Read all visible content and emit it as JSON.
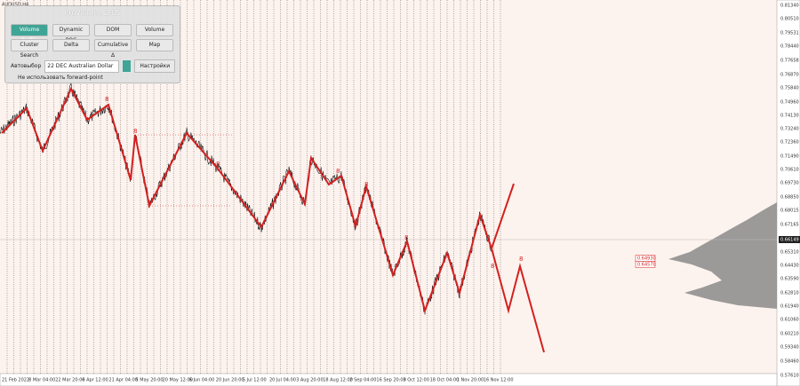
{
  "header": {
    "symbol": "AUDUSD,H4"
  },
  "panel": {
    "title": "ProVolume 2.05",
    "buttons": [
      "Volume Profile",
      "Dynamic POC",
      "DOM",
      "Volume",
      "Cluster Search",
      "Delta",
      "Cumulative Δ",
      "Map"
    ],
    "auto_select": "Автовыбор",
    "instrument": "22 DEC Australian Dollar",
    "settings": "Настройки",
    "forward_point": "Не использовать forward-point"
  },
  "price_axis": {
    "labels": [
      "0.81340",
      "0.80510",
      "0.79531",
      "0.78440",
      "0.77658",
      "0.76870",
      "0.75840",
      "0.74960",
      "0.74130",
      "0.73240",
      "0.72360",
      "0.71490",
      "0.70610",
      "0.69730",
      "0.68850",
      "0.68015",
      "0.67165",
      "0.65310",
      "0.64430",
      "0.63590",
      "0.62810",
      "0.61940",
      "0.61060",
      "0.60210",
      "0.59340",
      "0.58460",
      "0.57610"
    ],
    "current": "0.66149",
    "levels": [
      "0.64930",
      "0.64570"
    ]
  },
  "time_axis": {
    "labels": [
      "21 Feb 2022",
      "8 Mar 04:00",
      "22 Mar 20:00",
      "6 Apr 12:00",
      "21 Apr 04:00",
      "5 May 20:00",
      "20 May 12:00",
      "6 Jun 04:00",
      "20 Jun 20:00",
      "5 Jul 12:00",
      "20 Jul 04:00",
      "3 Aug 20:00",
      "18 Aug 12:00",
      "2 Sep 04:00",
      "16 Sep 20:00",
      "3 Oct 12:00",
      "18 Oct 04:00",
      "1 Nov 20:00",
      "16 Nov 12:00"
    ]
  },
  "wave_labels": [
    "8",
    "8",
    "8",
    "8",
    "8",
    "8",
    "8",
    "8"
  ]
}
